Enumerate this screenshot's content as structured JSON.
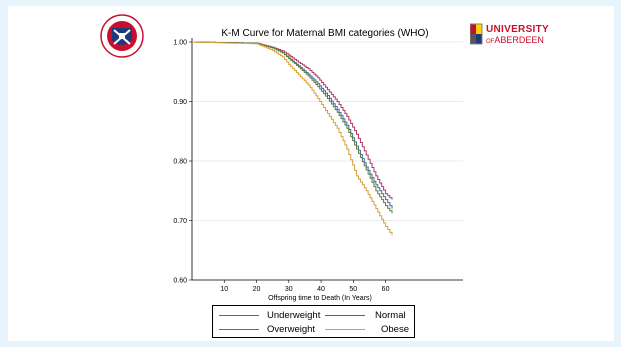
{
  "logos": {
    "left_name": "University of Edinburgh crest",
    "right_line1": "UNIVERSITY",
    "right_of": "OF",
    "right_line2": "ABERDEEN"
  },
  "chart_data": {
    "type": "line",
    "title": "K-M Curve for Maternal BMI categories (WHO)",
    "xlabel": "Offspring time to Death (In Years)",
    "ylabel": "",
    "xlim": [
      0,
      84
    ],
    "ylim": [
      0.6,
      1.0
    ],
    "x_ticks": [
      10,
      20,
      30,
      40,
      50,
      60
    ],
    "y_ticks": [
      "0.60",
      "0.70",
      "0.80",
      "0.90",
      "1.00"
    ],
    "grid": true,
    "legend_position": "bottom",
    "series": [
      {
        "name": "Underweight",
        "color": "#3a6cb4",
        "x": [
          0,
          20,
          25,
          28,
          30,
          33,
          36,
          39,
          42,
          45,
          48,
          51,
          54,
          57,
          60,
          62
        ],
        "y": [
          1.0,
          0.998,
          0.99,
          0.982,
          0.973,
          0.96,
          0.946,
          0.93,
          0.91,
          0.887,
          0.86,
          0.825,
          0.79,
          0.76,
          0.735,
          0.72
        ]
      },
      {
        "name": "Normal",
        "color": "#b03a5a",
        "x": [
          0,
          20,
          25,
          28,
          30,
          33,
          36,
          39,
          42,
          45,
          48,
          51,
          54,
          57,
          60,
          62
        ],
        "y": [
          1.0,
          0.998,
          0.991,
          0.985,
          0.978,
          0.966,
          0.955,
          0.94,
          0.92,
          0.9,
          0.875,
          0.845,
          0.81,
          0.775,
          0.745,
          0.735
        ]
      },
      {
        "name": "Overweight",
        "color": "#5e7a3a",
        "x": [
          0,
          20,
          25,
          28,
          30,
          33,
          36,
          39,
          42,
          45,
          48,
          51,
          54,
          57,
          60,
          62
        ],
        "y": [
          1.0,
          0.998,
          0.99,
          0.982,
          0.972,
          0.958,
          0.943,
          0.925,
          0.905,
          0.882,
          0.855,
          0.82,
          0.785,
          0.75,
          0.725,
          0.712
        ]
      },
      {
        "name": "Obese",
        "color": "#d4a03a",
        "x": [
          0,
          20,
          25,
          28,
          30,
          33,
          36,
          39,
          42,
          45,
          48,
          51,
          54,
          57,
          60,
          62
        ],
        "y": [
          1.0,
          0.997,
          0.986,
          0.975,
          0.962,
          0.945,
          0.928,
          0.905,
          0.88,
          0.855,
          0.82,
          0.775,
          0.75,
          0.72,
          0.69,
          0.675
        ]
      }
    ]
  }
}
